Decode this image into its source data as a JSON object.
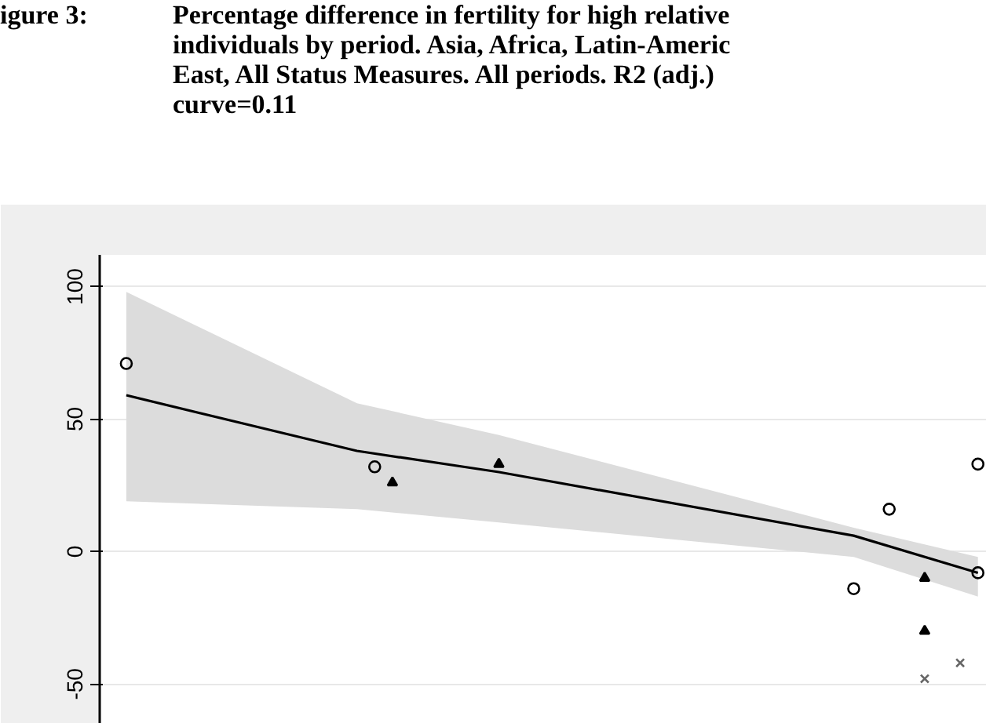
{
  "chart_data": {
    "type": "scatter",
    "title": "igure 3:",
    "subtitle": "Percentage difference in fertility for high relative\nindividuals by period. Asia, Africa, Latin-Americ\nEast, All Status Measures. All periods. R2 (adj.)\ncurve=0.11",
    "categories": [
      null,
      null,
      null,
      null,
      null,
      null,
      null,
      null,
      null,
      null,
      null,
      null,
      null,
      null,
      null,
      null,
      null,
      null,
      null,
      null,
      null,
      null,
      null,
      null,
      null,
      null,
      null,
      null,
      null,
      null,
      null,
      null,
      null,
      null,
      null,
      null,
      null,
      null,
      null,
      null,
      null,
      null,
      null,
      null,
      null,
      null,
      null,
      null,
      null,
      null
    ],
    "series": [
      {
        "marker": "circle",
        "color": "#000000",
        "values": [
          null,
          71,
          null,
          null,
          null,
          null,
          null,
          null,
          null,
          null,
          null,
          null,
          null,
          null,
          null,
          32,
          null,
          null,
          null,
          null,
          null,
          null,
          null,
          null,
          null,
          null,
          null,
          null,
          null,
          null,
          null,
          null,
          null,
          null,
          null,
          null,
          null,
          null,
          null,
          null,
          null,
          null,
          -14,
          null,
          16,
          null,
          null,
          null,
          null,
          33
        ]
      },
      {
        "marker": "triangle",
        "color": "#000000",
        "values": [
          null,
          null,
          null,
          null,
          null,
          null,
          null,
          null,
          null,
          null,
          null,
          null,
          null,
          null,
          null,
          null,
          26,
          null,
          null,
          null,
          null,
          null,
          33,
          null,
          null,
          null,
          null,
          null,
          null,
          null,
          null,
          null,
          null,
          null,
          null,
          null,
          null,
          null,
          null,
          null,
          null,
          null,
          null,
          null,
          null,
          null,
          -10,
          null,
          null,
          null
        ]
      },
      {
        "marker": "triangle",
        "color": "#000000",
        "values": [
          null,
          null,
          null,
          null,
          null,
          null,
          null,
          null,
          null,
          null,
          null,
          null,
          null,
          null,
          null,
          null,
          null,
          null,
          null,
          null,
          null,
          null,
          null,
          null,
          null,
          null,
          null,
          null,
          null,
          null,
          null,
          null,
          null,
          null,
          null,
          null,
          null,
          null,
          null,
          null,
          null,
          null,
          null,
          null,
          null,
          null,
          -30,
          null,
          null,
          null
        ]
      },
      {
        "marker": "circle",
        "color": "#000000",
        "values": [
          null,
          null,
          null,
          null,
          null,
          null,
          null,
          null,
          null,
          null,
          null,
          null,
          null,
          null,
          null,
          null,
          null,
          null,
          null,
          null,
          null,
          null,
          null,
          null,
          null,
          null,
          null,
          null,
          null,
          null,
          null,
          null,
          null,
          null,
          null,
          null,
          null,
          null,
          null,
          null,
          null,
          null,
          null,
          null,
          null,
          null,
          null,
          null,
          null,
          -8
        ]
      },
      {
        "marker": "cross",
        "color": "#666666",
        "values": [
          null,
          null,
          null,
          null,
          null,
          null,
          null,
          null,
          null,
          null,
          null,
          null,
          null,
          null,
          null,
          null,
          null,
          null,
          null,
          null,
          null,
          null,
          null,
          null,
          null,
          null,
          null,
          null,
          null,
          null,
          null,
          null,
          null,
          null,
          null,
          null,
          null,
          null,
          null,
          null,
          null,
          null,
          null,
          null,
          null,
          null,
          -48,
          null,
          -42,
          null
        ]
      },
      {
        "type": "line",
        "color": "#000000",
        "values": [
          null,
          59,
          null,
          null,
          null,
          null,
          null,
          null,
          null,
          null,
          null,
          null,
          null,
          null,
          38,
          null,
          null,
          null,
          null,
          null,
          null,
          null,
          30,
          null,
          null,
          null,
          null,
          null,
          null,
          null,
          null,
          null,
          null,
          null,
          null,
          null,
          null,
          null,
          null,
          null,
          null,
          null,
          6,
          null,
          null,
          null,
          null,
          null,
          null,
          -8
        ],
        "lower": [
          null,
          19,
          null,
          null,
          null,
          null,
          null,
          null,
          null,
          null,
          null,
          null,
          null,
          null,
          16,
          null,
          null,
          null,
          null,
          null,
          null,
          null,
          11,
          null,
          null,
          null,
          null,
          null,
          null,
          null,
          null,
          null,
          null,
          null,
          null,
          null,
          null,
          null,
          null,
          null,
          null,
          null,
          -2,
          null,
          null,
          null,
          null,
          null,
          null,
          -17
        ],
        "upper": [
          null,
          98,
          null,
          null,
          null,
          null,
          null,
          null,
          null,
          null,
          null,
          null,
          null,
          null,
          56,
          null,
          null,
          null,
          null,
          null,
          null,
          null,
          44,
          null,
          null,
          null,
          null,
          null,
          null,
          null,
          null,
          null,
          null,
          null,
          null,
          null,
          null,
          null,
          null,
          null,
          null,
          null,
          9,
          null,
          null,
          null,
          null,
          null,
          null,
          -2
        ]
      }
    ],
    "ylim": [
      -65,
      112
    ],
    "yticks": [
      -50,
      0,
      50,
      100
    ],
    "tick_labels": "y",
    "grid": "y"
  }
}
